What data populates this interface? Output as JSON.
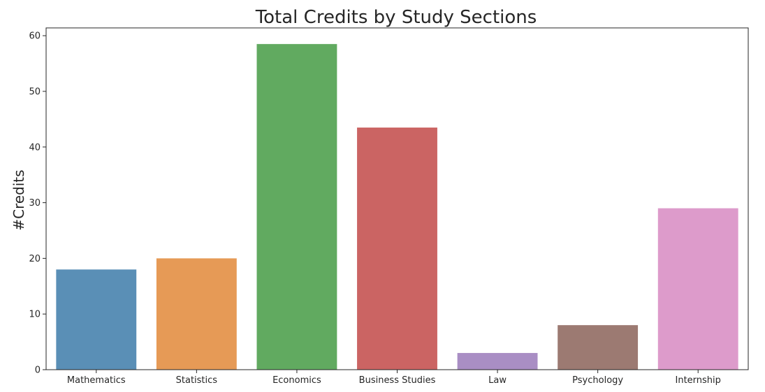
{
  "chart_data": {
    "type": "bar",
    "title": "Total Credits by Study Sections",
    "xlabel": "",
    "ylabel": "#Credits",
    "categories": [
      "Mathematics",
      "Statistics",
      "Economics",
      "Business Studies",
      "Law",
      "Psychology",
      "Internship"
    ],
    "values": [
      18,
      20,
      58.5,
      43.5,
      3,
      8,
      29
    ],
    "colors": [
      "#5a8fb6",
      "#e69a56",
      "#61aa60",
      "#cb6463",
      "#a98ec4",
      "#9c7a72",
      "#dd9bcb"
    ],
    "ylim": [
      0,
      61.4
    ],
    "yticks": [
      0,
      10,
      20,
      30,
      40,
      50,
      60
    ],
    "grid": false,
    "legend": "none"
  }
}
